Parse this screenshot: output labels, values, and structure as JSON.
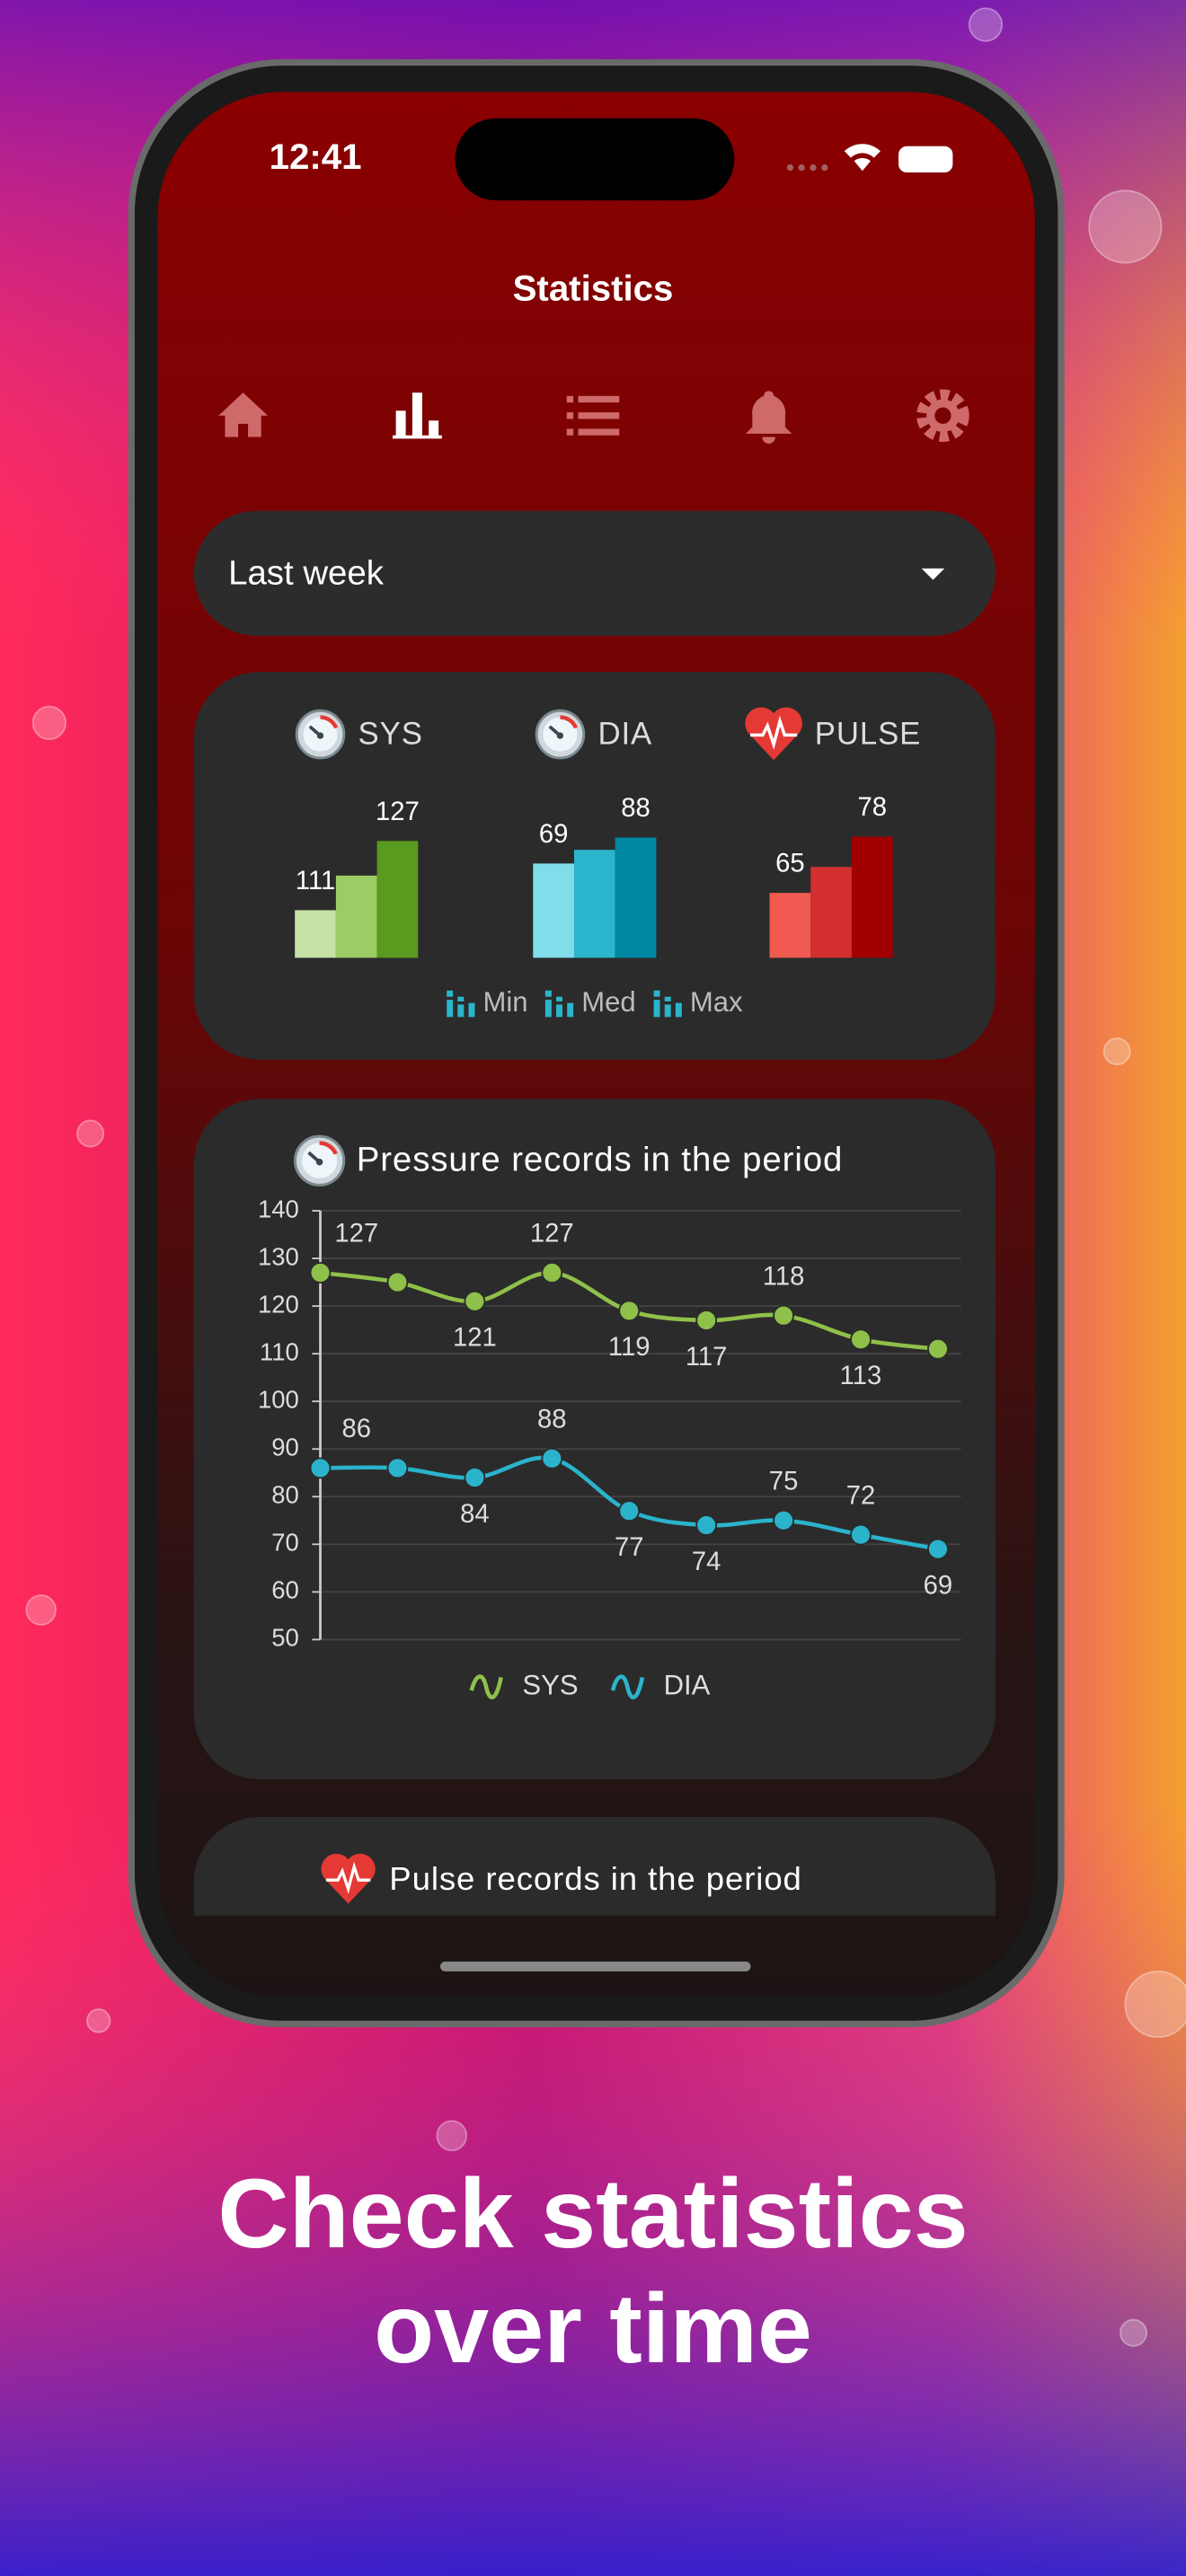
{
  "status_bar": {
    "time": "12:41"
  },
  "header": {
    "title": "Statistics"
  },
  "period_select": {
    "value": "Last week"
  },
  "chart_data": [
    {
      "type": "bar",
      "groups": [
        {
          "name": "SYS",
          "values": [
            111,
            119,
            127
          ],
          "value_labels": [
            111,
            null,
            127
          ],
          "colors": [
            "#c5e1a5",
            "#9ccc65",
            "#5a9a1e"
          ],
          "ylim": [
            100,
            130
          ]
        },
        {
          "name": "DIA",
          "values": [
            69,
            79,
            88
          ],
          "value_labels": [
            69,
            null,
            88
          ],
          "colors": [
            "#80deea",
            "#2bb5cc",
            "#0088a3"
          ],
          "ylim": [
            0,
            95
          ]
        },
        {
          "name": "PULSE",
          "values": [
            65,
            71,
            78
          ],
          "value_labels": [
            65,
            null,
            78
          ],
          "colors": [
            "#f05a50",
            "#d32f2f",
            "#a00000"
          ],
          "ylim": [
            50,
            80
          ]
        }
      ],
      "legend": [
        "Min",
        "Med",
        "Max"
      ]
    },
    {
      "type": "line",
      "title": "Pressure records in the period",
      "ylim": [
        50,
        140
      ],
      "yticks": [
        50,
        60,
        70,
        80,
        90,
        100,
        110,
        120,
        130,
        140
      ],
      "grid": true,
      "series": [
        {
          "name": "SYS",
          "color": "#8fc04a",
          "values": [
            127,
            125,
            121,
            127,
            119,
            117,
            118,
            113,
            111
          ],
          "value_labels": [
            127,
            null,
            121,
            127,
            119,
            117,
            118,
            113,
            null
          ]
        },
        {
          "name": "DIA",
          "color": "#2bb3cc",
          "values": [
            86,
            86,
            84,
            88,
            77,
            74,
            75,
            72,
            69
          ],
          "value_labels": [
            86,
            null,
            84,
            88,
            77,
            74,
            75,
            72,
            69
          ]
        }
      ],
      "legend": "bottom"
    }
  ],
  "pulse_card": {
    "title": "Pulse records in the period"
  },
  "caption": {
    "lines": [
      "Check statistics",
      "over time"
    ]
  }
}
